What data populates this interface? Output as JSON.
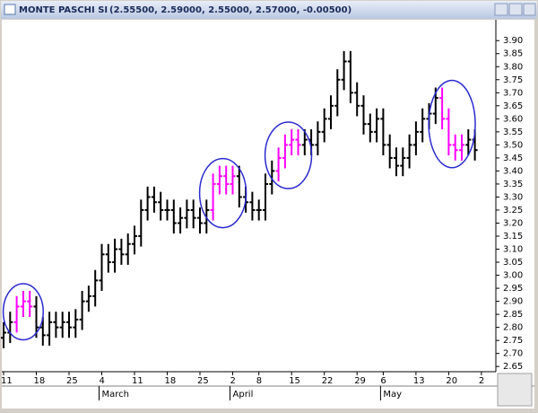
{
  "chart_data": {
    "type": "ohlc",
    "title": "MONTE PASCHI SI",
    "subtitle": "(2.55500, 2.59000, 2.55000, 2.57000, -0.00500)",
    "categories": [
      "11",
      null,
      null,
      null,
      null,
      "18",
      null,
      null,
      null,
      null,
      "25",
      null,
      null,
      null,
      null,
      "4",
      null,
      null,
      null,
      null,
      "11",
      null,
      null,
      null,
      null,
      "18",
      null,
      null,
      null,
      null,
      "25",
      null,
      null,
      null,
      null,
      "2",
      null,
      null,
      null,
      "8",
      null,
      null,
      null,
      null,
      "15",
      null,
      null,
      null,
      null,
      "22",
      null,
      null,
      null,
      null,
      "29",
      null,
      null,
      null,
      "6",
      null,
      null,
      null,
      null,
      "13",
      null,
      null,
      null,
      null,
      "20",
      null,
      null,
      null,
      null,
      "2"
    ],
    "month_labels": [
      null,
      null,
      null,
      null,
      null,
      null,
      null,
      null,
      null,
      null,
      null,
      null,
      null,
      null,
      null,
      "March",
      null,
      null,
      null,
      null,
      null,
      null,
      null,
      null,
      null,
      null,
      null,
      null,
      null,
      null,
      null,
      null,
      null,
      null,
      null,
      "April",
      null,
      null,
      null,
      null,
      null,
      null,
      null,
      null,
      null,
      null,
      null,
      null,
      null,
      null,
      null,
      null,
      null,
      null,
      null,
      null,
      null,
      null,
      "May",
      null,
      null,
      null,
      null,
      null,
      null,
      null,
      null,
      null,
      null,
      null,
      null,
      null,
      null,
      null
    ],
    "open": [
      2.76,
      2.78,
      2.82,
      2.88,
      2.9,
      2.88,
      2.8,
      2.77,
      2.82,
      2.8,
      2.82,
      2.8,
      2.83,
      2.9,
      2.92,
      2.98,
      3.08,
      3.05,
      3.1,
      3.08,
      3.12,
      3.15,
      3.25,
      3.3,
      3.28,
      3.25,
      3.25,
      3.2,
      3.22,
      3.25,
      3.22,
      3.2,
      3.25,
      3.35,
      3.38,
      3.35,
      3.38,
      3.3,
      3.28,
      3.25,
      3.25,
      3.35,
      3.4,
      3.45,
      3.5,
      3.52,
      3.5,
      3.52,
      3.5,
      3.55,
      3.6,
      3.65,
      3.75,
      3.82,
      3.7,
      3.65,
      3.58,
      3.55,
      3.6,
      3.5,
      3.45,
      3.42,
      3.45,
      3.5,
      3.55,
      3.6,
      3.62,
      3.68,
      3.6,
      3.5,
      3.48,
      3.5,
      3.52,
      null
    ],
    "high": [
      2.82,
      2.86,
      2.92,
      2.94,
      2.94,
      2.92,
      2.84,
      2.86,
      2.86,
      2.86,
      2.86,
      2.87,
      2.94,
      2.96,
      3.02,
      3.12,
      3.12,
      3.14,
      3.14,
      3.16,
      3.19,
      3.29,
      3.34,
      3.34,
      3.32,
      3.29,
      3.29,
      3.26,
      3.29,
      3.29,
      3.26,
      3.29,
      3.39,
      3.42,
      3.42,
      3.42,
      3.42,
      3.34,
      3.32,
      3.29,
      3.39,
      3.44,
      3.49,
      3.54,
      3.56,
      3.56,
      3.56,
      3.56,
      3.59,
      3.64,
      3.69,
      3.79,
      3.86,
      3.86,
      3.74,
      3.69,
      3.62,
      3.64,
      3.64,
      3.54,
      3.49,
      3.49,
      3.54,
      3.59,
      3.64,
      3.66,
      3.72,
      3.72,
      3.64,
      3.54,
      3.54,
      3.56,
      3.56,
      null
    ],
    "low": [
      2.72,
      2.74,
      2.78,
      2.84,
      2.84,
      2.76,
      2.73,
      2.73,
      2.76,
      2.76,
      2.76,
      2.76,
      2.79,
      2.86,
      2.88,
      2.94,
      3.01,
      3.01,
      3.04,
      3.04,
      3.08,
      3.11,
      3.21,
      3.24,
      3.21,
      3.21,
      3.16,
      3.16,
      3.18,
      3.18,
      3.16,
      3.16,
      3.21,
      3.31,
      3.31,
      3.31,
      3.26,
      3.24,
      3.21,
      3.21,
      3.21,
      3.31,
      3.36,
      3.41,
      3.46,
      3.46,
      3.46,
      3.46,
      3.46,
      3.51,
      3.56,
      3.61,
      3.71,
      3.66,
      3.61,
      3.54,
      3.51,
      3.51,
      3.46,
      3.41,
      3.38,
      3.38,
      3.41,
      3.46,
      3.51,
      3.56,
      3.58,
      3.56,
      3.46,
      3.44,
      3.44,
      3.46,
      3.44,
      null
    ],
    "close": [
      2.78,
      2.82,
      2.88,
      2.9,
      2.88,
      2.8,
      2.77,
      2.82,
      2.8,
      2.82,
      2.8,
      2.83,
      2.9,
      2.92,
      2.98,
      3.08,
      3.05,
      3.1,
      3.08,
      3.12,
      3.15,
      3.25,
      3.3,
      3.28,
      3.25,
      3.25,
      3.2,
      3.22,
      3.25,
      3.22,
      3.2,
      3.25,
      3.35,
      3.38,
      3.35,
      3.38,
      3.3,
      3.28,
      3.25,
      3.25,
      3.35,
      3.4,
      3.45,
      3.5,
      3.52,
      3.5,
      3.52,
      3.5,
      3.55,
      3.6,
      3.65,
      3.75,
      3.82,
      3.7,
      3.65,
      3.58,
      3.55,
      3.6,
      3.5,
      3.45,
      3.42,
      3.45,
      3.5,
      3.55,
      3.6,
      3.62,
      3.68,
      3.6,
      3.5,
      3.48,
      3.5,
      3.52,
      3.48,
      null
    ],
    "color": "#000000",
    "highlight": [
      2,
      3,
      4,
      32,
      33,
      34,
      35,
      42,
      43,
      44,
      45,
      67,
      68,
      69,
      70
    ],
    "highlight_color": "#ff00ff",
    "circle_color": "#2a2ad0",
    "ylim": [
      2.63,
      3.98
    ],
    "yticks": [
      {
        "value": 2.65,
        "label": "2.65"
      },
      {
        "value": 2.7,
        "label": "2.70"
      },
      {
        "value": 2.75,
        "label": "2.75"
      },
      {
        "value": 2.8,
        "label": "2.80"
      },
      {
        "value": 2.85,
        "label": "2.85"
      },
      {
        "value": 2.9,
        "label": "2.90"
      },
      {
        "value": 2.95,
        "label": "2.95"
      },
      {
        "value": 3.0,
        "label": "3.00"
      },
      {
        "value": 3.05,
        "label": "3.05"
      },
      {
        "value": 3.1,
        "label": "3.10"
      },
      {
        "value": 3.15,
        "label": "3.15"
      },
      {
        "value": 3.2,
        "label": "3.20"
      },
      {
        "value": 3.25,
        "label": "3.25"
      },
      {
        "value": 3.3,
        "label": "3.30"
      },
      {
        "value": 3.35,
        "label": "3.35"
      },
      {
        "value": 3.4,
        "label": "3.40"
      },
      {
        "value": 3.45,
        "label": "3.45"
      },
      {
        "value": 3.5,
        "label": "3.50"
      },
      {
        "value": 3.55,
        "label": "3.55"
      },
      {
        "value": 3.6,
        "label": "3.60"
      },
      {
        "value": 3.65,
        "label": "3.65"
      },
      {
        "value": 3.7,
        "label": "3.70"
      },
      {
        "value": 3.75,
        "label": "3.75"
      },
      {
        "value": 3.8,
        "label": "3.80"
      },
      {
        "value": 3.85,
        "label": "3.85"
      },
      {
        "value": 3.9,
        "label": "3.90"
      }
    ]
  }
}
